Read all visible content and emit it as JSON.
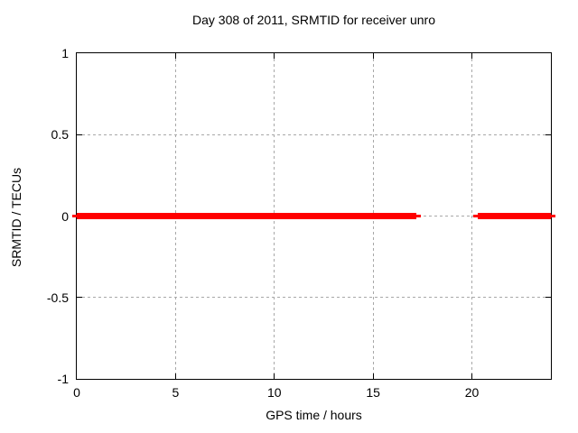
{
  "chart_data": {
    "type": "line",
    "title": "Day 308 of 2011, SRMTID for receiver unro",
    "xlabel": "GPS time / hours",
    "ylabel": "SRMTID / TECUs",
    "xlim": [
      0,
      24
    ],
    "ylim": [
      -1,
      1
    ],
    "x_ticks": [
      0,
      5,
      10,
      15,
      20
    ],
    "y_ticks": [
      1,
      0.5,
      0,
      -0.5,
      -1
    ],
    "grid": true,
    "legend": "none",
    "series": [
      {
        "name": "SRMTID",
        "color": "#ff0000",
        "style": "thick flat line at y=0 with a data gap between segments",
        "segments": [
          {
            "x_start": 0.0,
            "x_end": 17.2,
            "y": 0
          },
          {
            "x_start": 20.3,
            "x_end": 24.0,
            "y": 0
          }
        ]
      }
    ]
  },
  "colors": {
    "background": "#ffffff",
    "border": "#000000",
    "grid": "#a8a8a8",
    "text": "#000000",
    "series": "#ff0000"
  }
}
